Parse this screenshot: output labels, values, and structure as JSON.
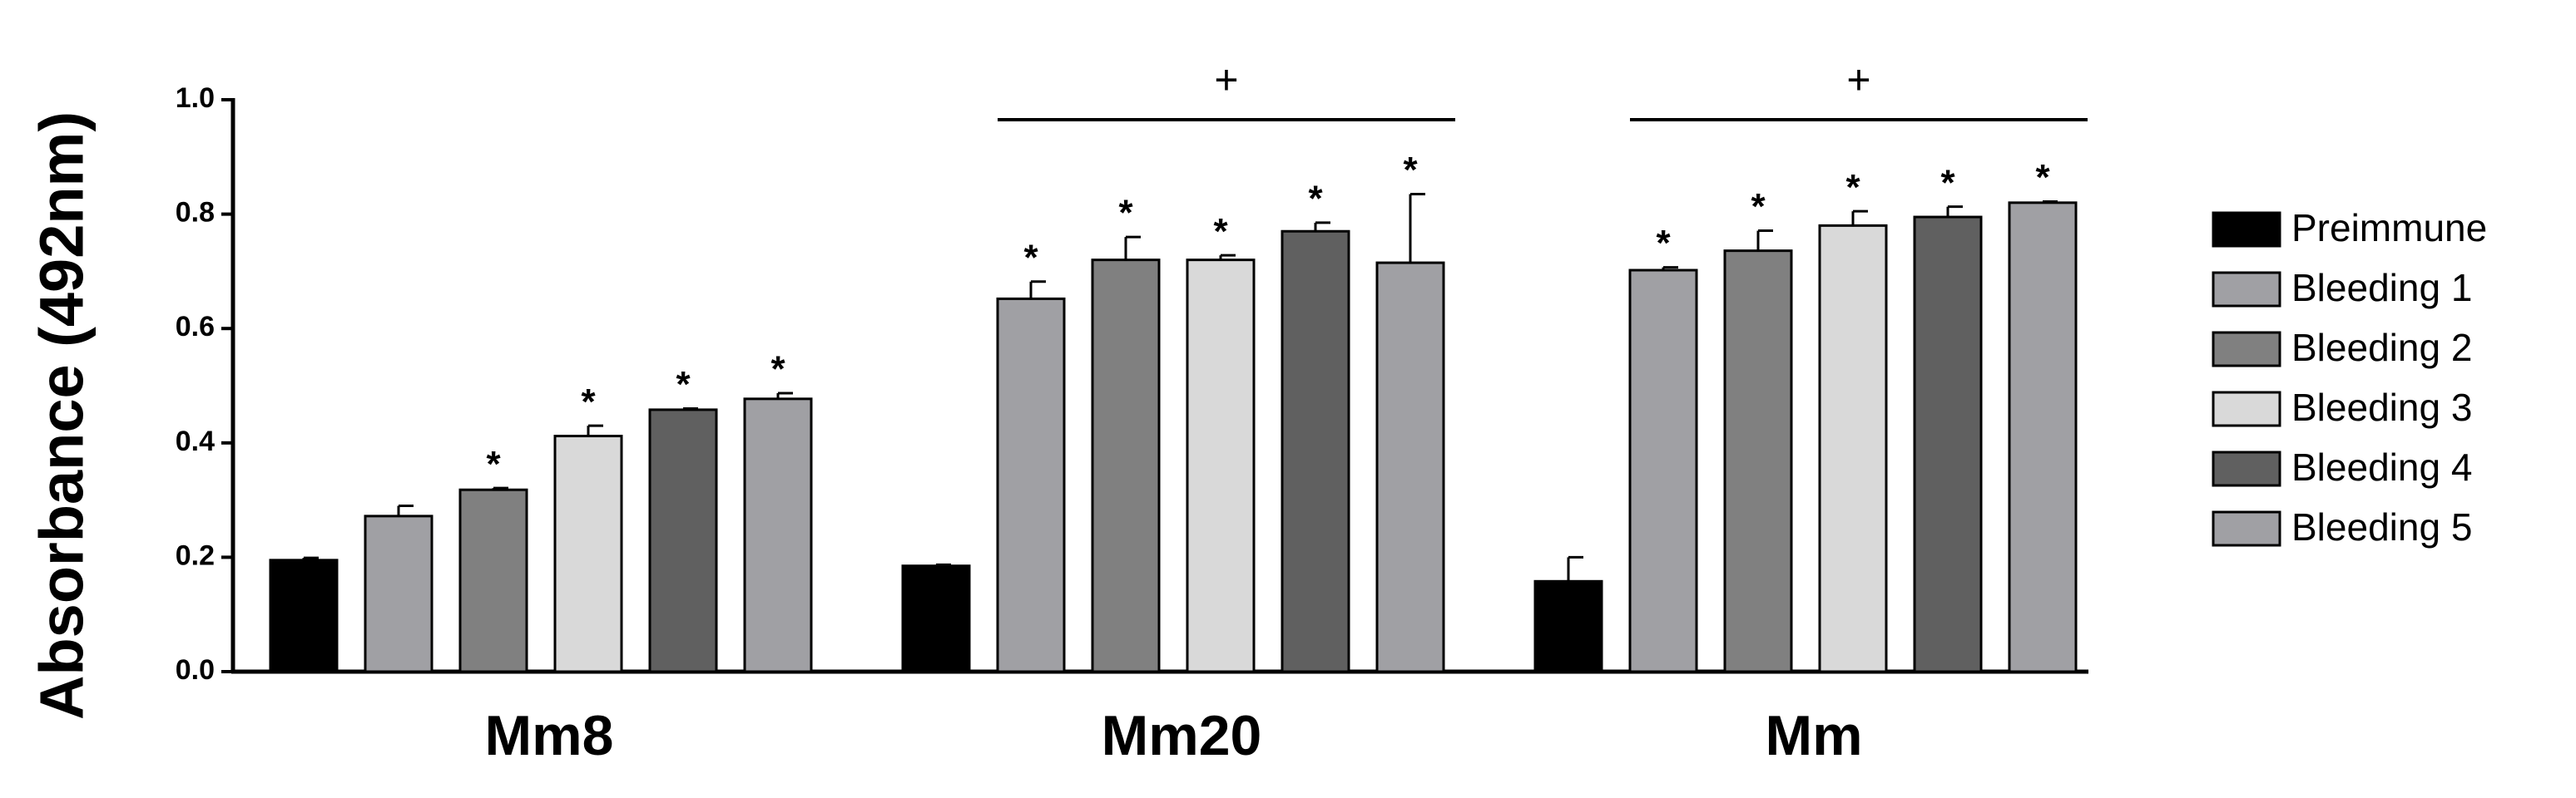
{
  "chart_data": {
    "type": "bar",
    "y_label": "Absorbance (492nm)",
    "categories": [
      "Mm8",
      "Mm20",
      "Mm"
    ],
    "group_annotations": [
      null,
      "+",
      "+"
    ],
    "ylim": [
      0,
      1.0
    ],
    "yticks": [
      {
        "value": 0,
        "label": "0.0"
      },
      {
        "value": 0.2,
        "label": "0.2"
      },
      {
        "value": 0.4,
        "label": "0.4"
      },
      {
        "value": 0.6,
        "label": "0.6"
      },
      {
        "value": 0.8,
        "label": "0.8"
      },
      {
        "value": 1.0,
        "label": "1.0"
      }
    ],
    "legend": "right",
    "series": [
      {
        "name": "Preimmune",
        "color": "#000000",
        "values": [
          0.195,
          0.185,
          0.158
        ],
        "errors": [
          0.004,
          0.002,
          0.042
        ],
        "labels": [
          null,
          null,
          null
        ]
      },
      {
        "name": "Bleeding 1",
        "color": "#a0a0a4",
        "values": [
          0.272,
          0.652,
          0.702
        ],
        "errors": [
          0.018,
          0.03,
          0.005
        ],
        "labels": [
          null,
          "*",
          "*"
        ]
      },
      {
        "name": "Bleeding 2",
        "color": "#808080",
        "values": [
          0.318,
          0.72,
          0.736
        ],
        "errors": [
          0.003,
          0.04,
          0.035
        ],
        "labels": [
          "*",
          "*",
          "*"
        ]
      },
      {
        "name": "Bleeding 3",
        "color": "#d9d9d9",
        "values": [
          0.412,
          0.72,
          0.78
        ],
        "errors": [
          0.018,
          0.008,
          0.025
        ],
        "labels": [
          "*",
          "*",
          "*"
        ]
      },
      {
        "name": "Bleeding 4",
        "color": "#606060",
        "values": [
          0.458,
          0.77,
          0.795
        ],
        "errors": [
          0.002,
          0.015,
          0.018
        ],
        "labels": [
          "*",
          "*",
          "*"
        ]
      },
      {
        "name": "Bleeding 5",
        "color": "#a0a0a4",
        "values": [
          0.477,
          0.715,
          0.82
        ],
        "errors": [
          0.01,
          0.12,
          0.002
        ],
        "labels": [
          "*",
          "*",
          "*"
        ]
      }
    ]
  }
}
